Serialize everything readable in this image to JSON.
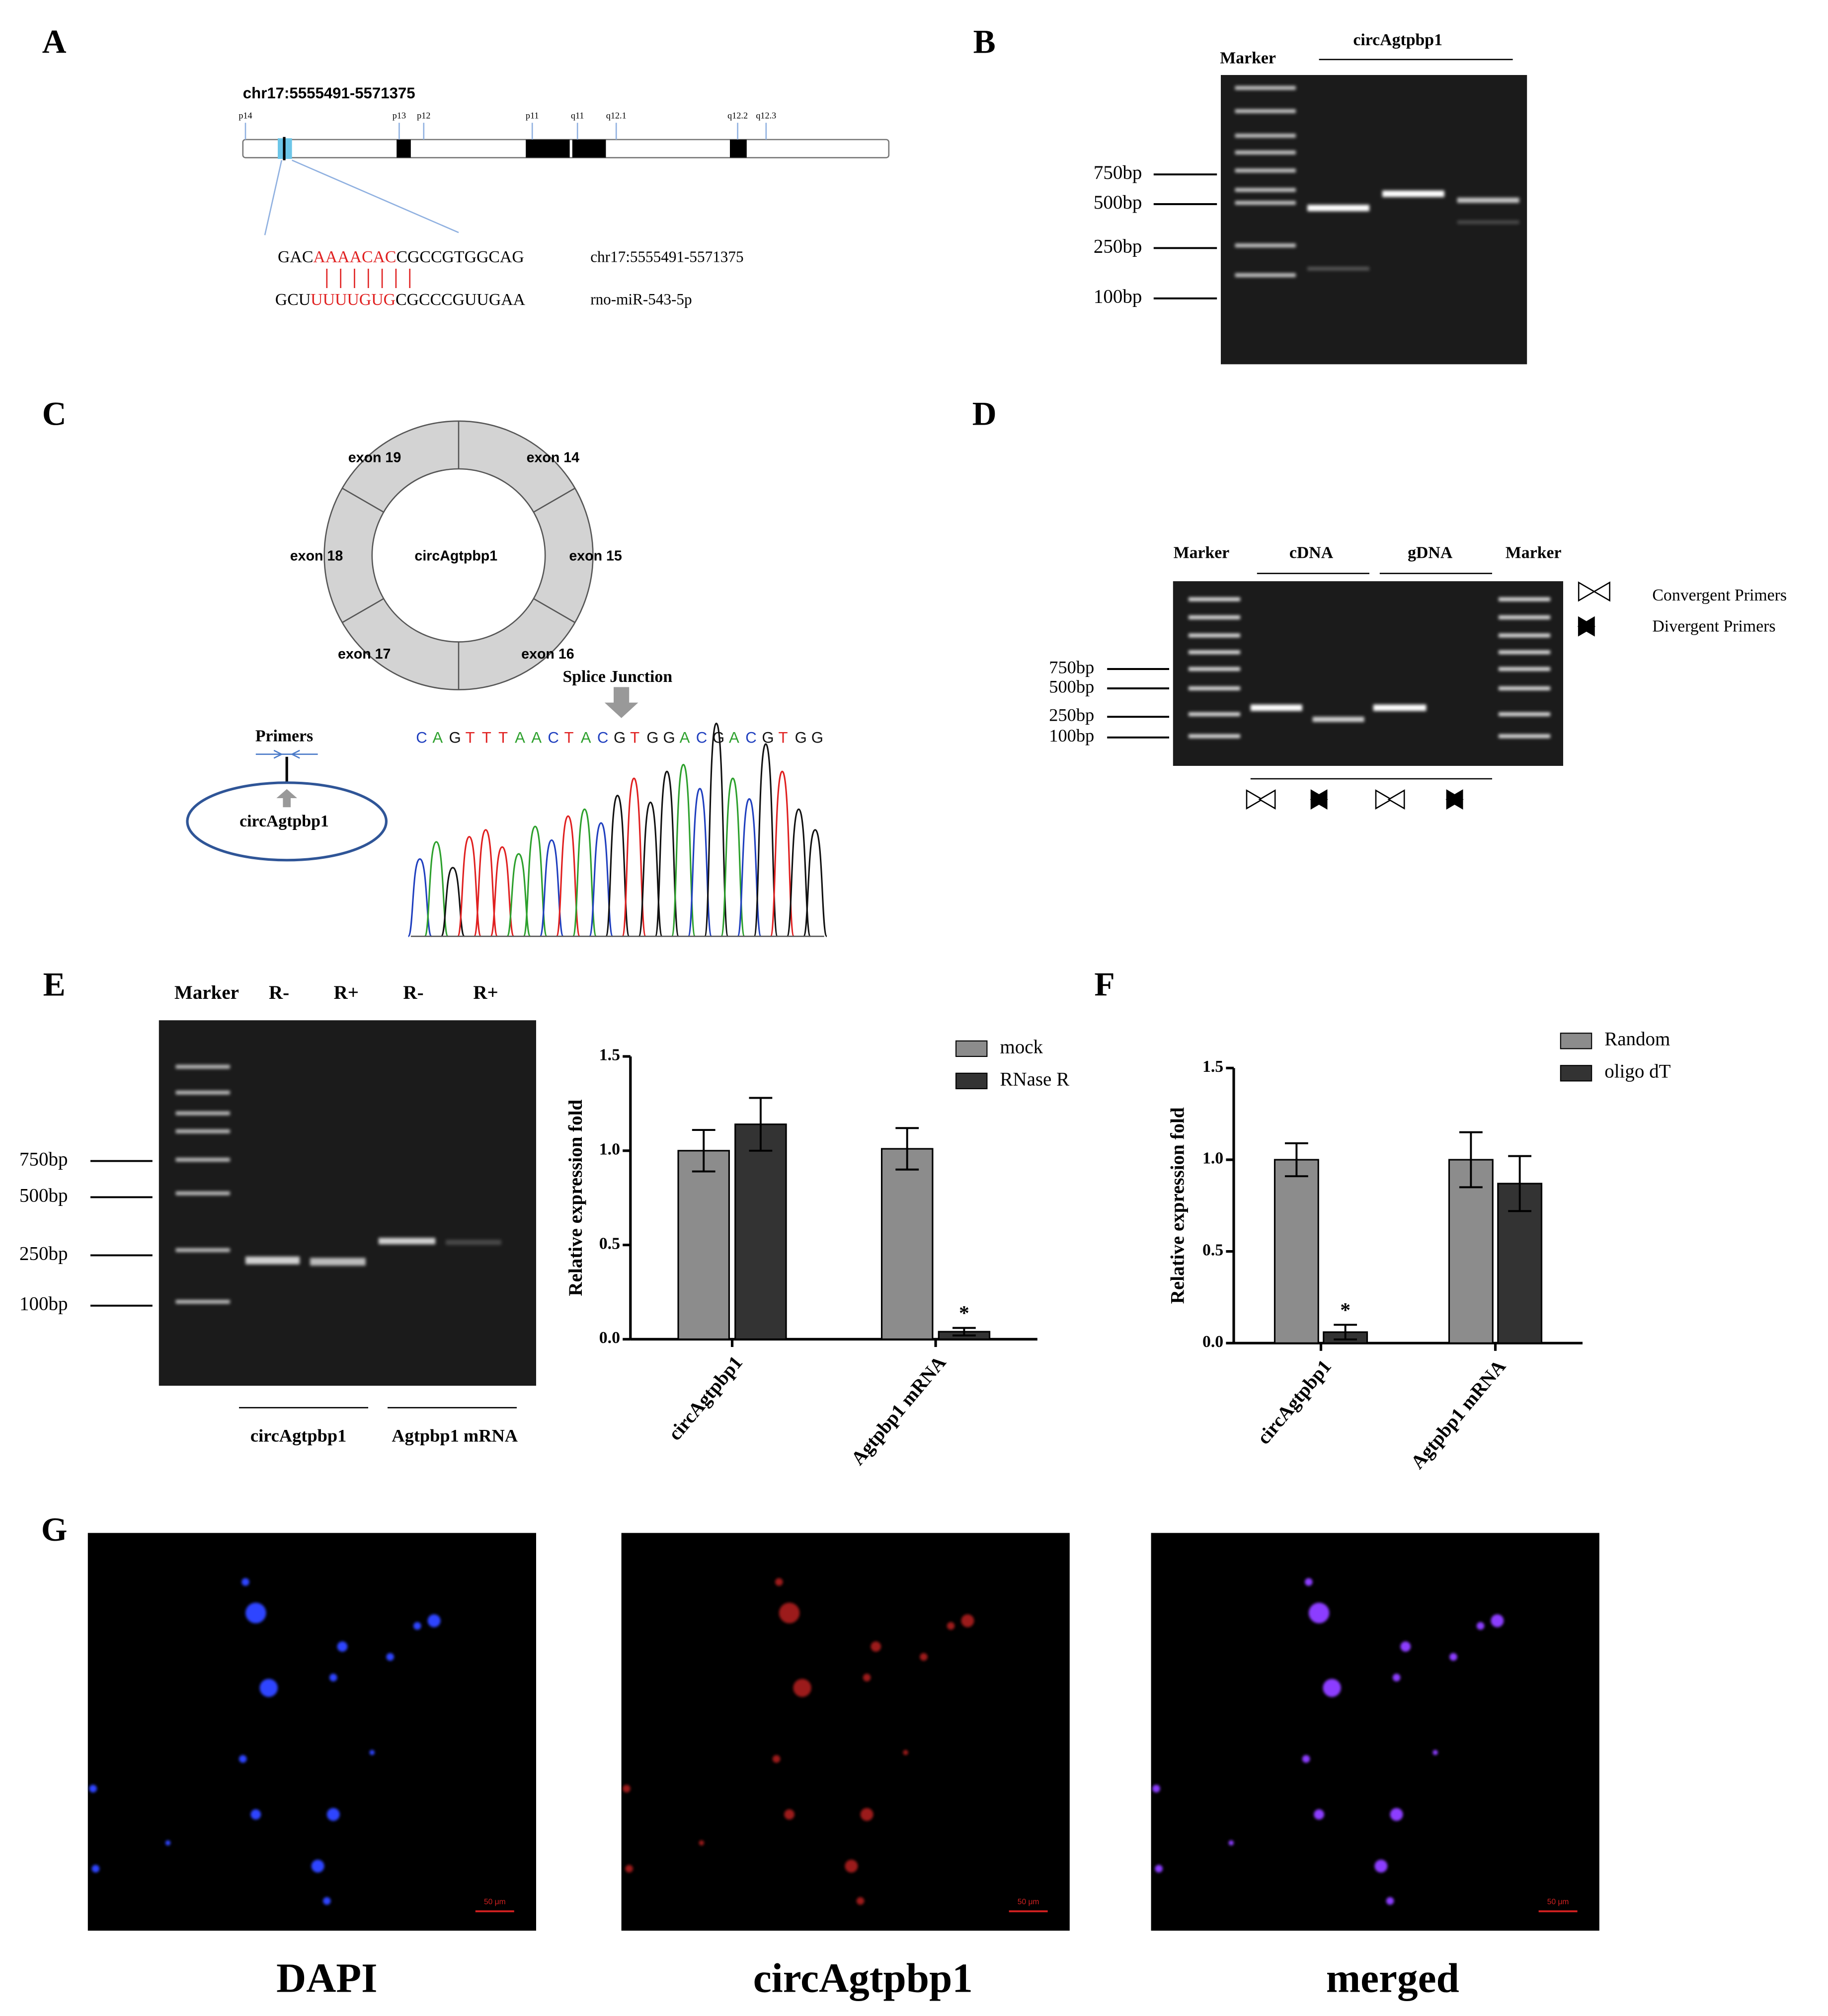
{
  "panel_labels": [
    "A",
    "B",
    "C",
    "D",
    "E",
    "F",
    "G"
  ],
  "panel_a": {
    "locus": "chr17:5555491-5571375",
    "bands": [
      "p14",
      "p13",
      "p12",
      "p11",
      "q11",
      "q12.1",
      "q12.2",
      "q12.3"
    ],
    "target": {
      "left": "GAC",
      "match": "AAAACAC",
      "right": "CGCCGTGGCAG",
      "name": "chr17:5555491-5571375"
    },
    "mirna": {
      "left": "GCU",
      "match": "UUUUGUG",
      "right": "CGCCCGUUGAA",
      "name": "rno-miR-543-5p"
    }
  },
  "panel_b": {
    "marker": "Marker",
    "sample": "circAgtpbp1",
    "ladder": [
      "750bp",
      "500bp",
      "250bp",
      "100bp"
    ]
  },
  "panel_c": {
    "exons": [
      "exon 19",
      "exon 14",
      "exon 18",
      "exon 15",
      "exon 17",
      "exon 16"
    ],
    "circle": "circAgtpbp1",
    "splice": "Splice Junction",
    "sequence": "CAGTTTAACTACGTGGACGACGTGG",
    "primers": "Primers",
    "primer_target": "circAgtpbp1"
  },
  "panel_d": {
    "lanes": [
      "Marker",
      "cDNA",
      "gDNA",
      "Marker"
    ],
    "ladder": [
      "750bp",
      "500bp",
      "250bp",
      "100bp"
    ],
    "legend": [
      "Convergent Primers",
      "Divergent Primers"
    ]
  },
  "panel_e": {
    "lanes": [
      "Marker",
      "R-",
      "R+",
      "R-",
      "R+"
    ],
    "ladder": [
      "750bp",
      "500bp",
      "250bp",
      "100bp"
    ],
    "groups": [
      "circAgtpbp1",
      "Agtpbp1 mRNA"
    ]
  },
  "chart_data": [
    {
      "type": "bar",
      "y_label": "Relative expression fold",
      "categories": [
        "circAgtpbp1",
        "Agtpbp1 mRNA"
      ],
      "series": [
        {
          "name": "mock",
          "color": "#8c8c8c",
          "values": [
            1.0,
            1.01
          ],
          "errors": [
            0.11,
            0.11
          ]
        },
        {
          "name": "RNase R",
          "color": "#333333",
          "values": [
            1.14,
            0.04
          ],
          "errors": [
            0.14,
            0.02
          ]
        }
      ],
      "ylim": [
        0,
        1.5
      ],
      "yticks": [
        {
          "value": 0,
          "label": "0.0"
        },
        0.5,
        {
          "value": 1,
          "label": "1.0"
        },
        1.5
      ],
      "legend": "top-right",
      "annotations": [
        {
          "text": "*",
          "category": "Agtpbp1 mRNA",
          "series": "RNase R"
        }
      ]
    },
    {
      "type": "bar",
      "y_label": "Relative expression fold",
      "categories": [
        "circAgtpbp1",
        "Agtpbp1 mRNA"
      ],
      "series": [
        {
          "name": "Random",
          "color": "#8c8c8c",
          "values": [
            1.0,
            1.0
          ],
          "errors": [
            0.09,
            0.15
          ]
        },
        {
          "name": "oligo dT",
          "color": "#333333",
          "values": [
            0.06,
            0.87
          ],
          "errors": [
            0.04,
            0.15
          ]
        }
      ],
      "ylim": [
        0,
        1.5
      ],
      "yticks": [
        {
          "value": 0,
          "label": "0.0"
        },
        0.5,
        {
          "value": 1,
          "label": "1.0"
        },
        1.5
      ],
      "legend": "top-right",
      "annotations": [
        {
          "text": "*",
          "category": "circAgtpbp1",
          "series": "oligo dT"
        }
      ]
    }
  ],
  "panel_g": {
    "channels": [
      "DAPI",
      "circAgtpbp1",
      "merged"
    ],
    "scale_bar": "50 μm"
  }
}
